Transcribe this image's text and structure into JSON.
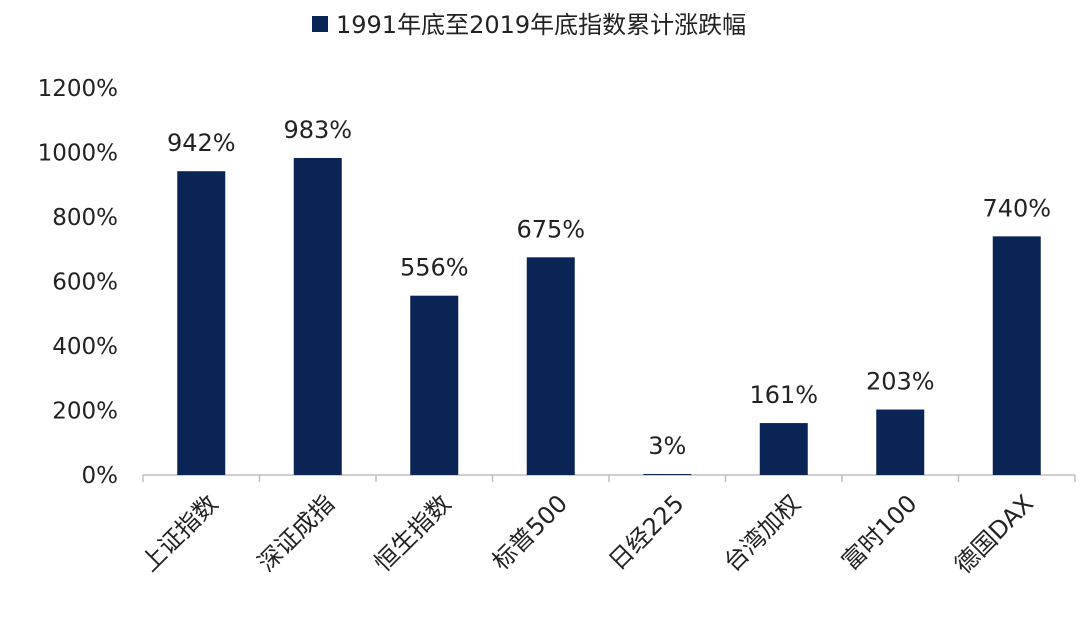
{
  "chart_data": {
    "type": "bar",
    "title": "",
    "xlabel": "",
    "ylabel": "",
    "legend": {
      "entries": [
        "1991年底至2019年底指数累计涨跌幅"
      ],
      "placement": "top"
    },
    "categories": [
      "上证指数",
      "深证成指",
      "恒生指数",
      "标普500",
      "日经225",
      "台湾加权",
      "富时100",
      "德国DAX"
    ],
    "series": [
      {
        "name": "1991年底至2019年底指数累计涨跌幅",
        "values": [
          942,
          983,
          556,
          675,
          3,
          161,
          203,
          740
        ],
        "labels": [
          "942%",
          "983%",
          "556%",
          "675%",
          "3%",
          "161%",
          "203%",
          "740%"
        ]
      }
    ],
    "ylim": [
      0,
      1200
    ],
    "yticks": [
      0,
      200,
      400,
      600,
      800,
      1000,
      1200
    ],
    "ytick_labels": [
      "0%",
      "200%",
      "400%",
      "600%",
      "800%",
      "1000%",
      "1200%"
    ],
    "grid": false,
    "colors": {
      "bar": "#0a2456",
      "axis": "#bfbfbf"
    }
  }
}
